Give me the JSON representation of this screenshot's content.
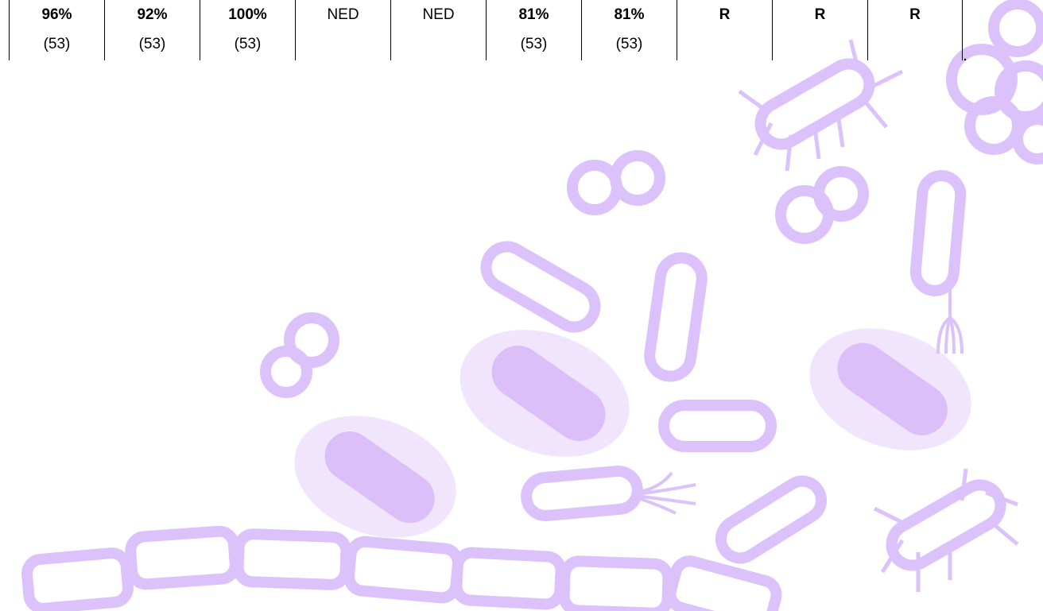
{
  "table": {
    "rows": [
      [
        {
          "top": "96%",
          "bottom": "(53)",
          "bold": true
        },
        {
          "top": "92%",
          "bottom": "(53)",
          "bold": true
        },
        {
          "top": "100%",
          "bottom": "(53)",
          "bold": true
        },
        {
          "top": "NED",
          "bold": false
        },
        {
          "top": "NED",
          "bold": false
        },
        {
          "top": "81%",
          "bottom": "(53)",
          "bold": true
        },
        {
          "top": "81%",
          "bottom": "(53)",
          "bold": true
        },
        {
          "top": "R",
          "bold": true
        },
        {
          "top": "R",
          "bold": true
        },
        {
          "top": "R",
          "bold": true
        }
      ]
    ]
  }
}
